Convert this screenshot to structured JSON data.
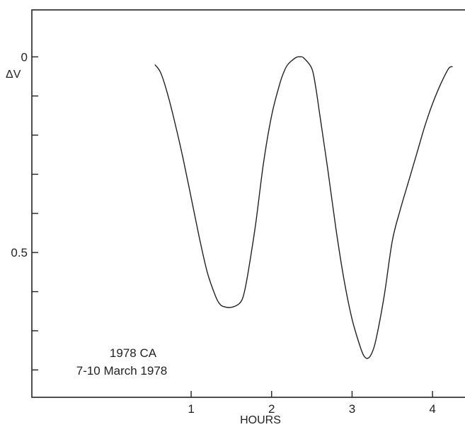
{
  "chart_data": {
    "type": "line",
    "title": "",
    "xlabel": "HOURS",
    "ylabel": "ΔV",
    "xlim": [
      -0.98,
      4.65
    ],
    "ylim": [
      0.87,
      -0.12
    ],
    "y_inverted": true,
    "x_ticks": [
      1,
      2,
      3,
      4
    ],
    "x_tick_labels": [
      "1",
      "2",
      "3",
      "4"
    ],
    "y_ticks": [
      0,
      0.1,
      0.2,
      0.3,
      0.4,
      0.5,
      0.6,
      0.7,
      0.8
    ],
    "y_tick_labels": [
      "0",
      "",
      "",
      "",
      "",
      "0.5",
      "",
      "",
      ""
    ],
    "grid": false,
    "legend": "none",
    "annotation": [
      "1978 CA",
      "7-10 March 1978"
    ],
    "series": [
      {
        "x": [
          0.55,
          0.62,
          0.7,
          0.8,
          0.9,
          1.0,
          1.1,
          1.2,
          1.3,
          1.35,
          1.4,
          1.5,
          1.6,
          1.65,
          1.7,
          1.8,
          1.9,
          2.0,
          2.1,
          2.15,
          2.2,
          2.3,
          2.35,
          2.4,
          2.5,
          2.55,
          2.6,
          2.7,
          2.8,
          2.9,
          3.0,
          3.1,
          3.15,
          3.2,
          3.25,
          3.3,
          3.4,
          3.5,
          3.6,
          3.7,
          3.8,
          3.9,
          4.0,
          4.1,
          4.2,
          4.25
        ],
        "y": [
          0.02,
          0.04,
          0.09,
          0.17,
          0.26,
          0.36,
          0.46,
          0.55,
          0.61,
          0.63,
          0.638,
          0.64,
          0.63,
          0.61,
          0.56,
          0.43,
          0.27,
          0.15,
          0.07,
          0.04,
          0.02,
          0.002,
          0.0,
          0.003,
          0.03,
          0.08,
          0.15,
          0.29,
          0.44,
          0.57,
          0.67,
          0.74,
          0.765,
          0.77,
          0.755,
          0.72,
          0.61,
          0.47,
          0.39,
          0.32,
          0.25,
          0.18,
          0.12,
          0.07,
          0.03,
          0.025
        ]
      }
    ]
  }
}
